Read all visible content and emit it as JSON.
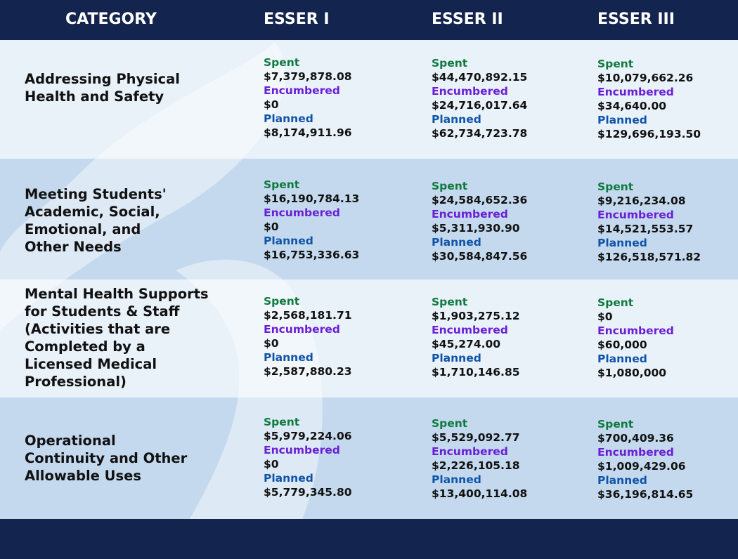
{
  "chart_data": {
    "type": "table",
    "columns": [
      "CATEGORY",
      "ESSER I",
      "ESSER II",
      "ESSER III"
    ],
    "metric_labels": {
      "spent": "Spent",
      "encumbered": "Encumbered",
      "planned": "Planned"
    },
    "rows": [
      {
        "category": "Addressing Physical Health and Safety",
        "category_lines": [
          "Addressing Physical",
          "Health and Safety"
        ],
        "cells": [
          {
            "spent": "$7,379,878.08",
            "encumbered": "$0",
            "planned": "$8,174,911.96"
          },
          {
            "spent": "$44,470,892.15",
            "encumbered": "$24,716,017.64",
            "planned": "$62,734,723.78"
          },
          {
            "spent": "$10,079,662.26",
            "encumbered": "$34,640.00",
            "planned": "$129,696,193.50"
          }
        ]
      },
      {
        "category": "Meeting Students' Academic, Social, Emotional, and Other Needs",
        "category_lines": [
          "Meeting Students'",
          "Academic, Social,",
          "Emotional, and",
          "Other Needs"
        ],
        "cells": [
          {
            "spent": "$16,190,784.13",
            "encumbered": "$0",
            "planned": "$16,753,336.63"
          },
          {
            "spent": "$24,584,652.36",
            "encumbered": "$5,311,930.90",
            "planned": "$30,584,847.56"
          },
          {
            "spent": "$9,216,234.08",
            "encumbered": "$14,521,553.57",
            "planned": "$126,518,571.82"
          }
        ]
      },
      {
        "category": "Mental Health Supports for Students & Staff (Activities that are Completed by a Licensed Medical Professional)",
        "category_lines": [
          "Mental Health Supports",
          "for Students & Staff",
          "(Activities that are",
          "Completed by a",
          "Licensed Medical",
          "Professional)"
        ],
        "cells": [
          {
            "spent": "$2,568,181.71",
            "encumbered": "$0",
            "planned": "$2,587,880.23"
          },
          {
            "spent": "$1,903,275.12",
            "encumbered": "$45,274.00",
            "planned": "$1,710,146.85"
          },
          {
            "spent": "$0",
            "encumbered": "$60,000",
            "planned": "$1,080,000"
          }
        ]
      },
      {
        "category": "Operational Continuity and Other Allowable Uses",
        "category_lines": [
          "Operational",
          "Continuity and Other",
          "Allowable Uses"
        ],
        "cells": [
          {
            "spent": "$5,979,224.06",
            "encumbered": "$0",
            "planned": "$5,779,345.80"
          },
          {
            "spent": "$5,529,092.77",
            "encumbered": "$2,226,105.18",
            "planned": "$13,400,114.08"
          },
          {
            "spent": "$700,409.36",
            "encumbered": "$1,009,429.06",
            "planned": "$36,196,814.65"
          }
        ]
      }
    ]
  },
  "colors": {
    "header_bg": "#13254e",
    "header_text": "#ffffff",
    "row_light": "#e9f1f9",
    "row_dark": "#c4d9ee",
    "spent_label": "#0e7a3e",
    "encumbered_label": "#6a1fd6",
    "planned_label": "#0f54a8",
    "value_text": "#111111"
  }
}
